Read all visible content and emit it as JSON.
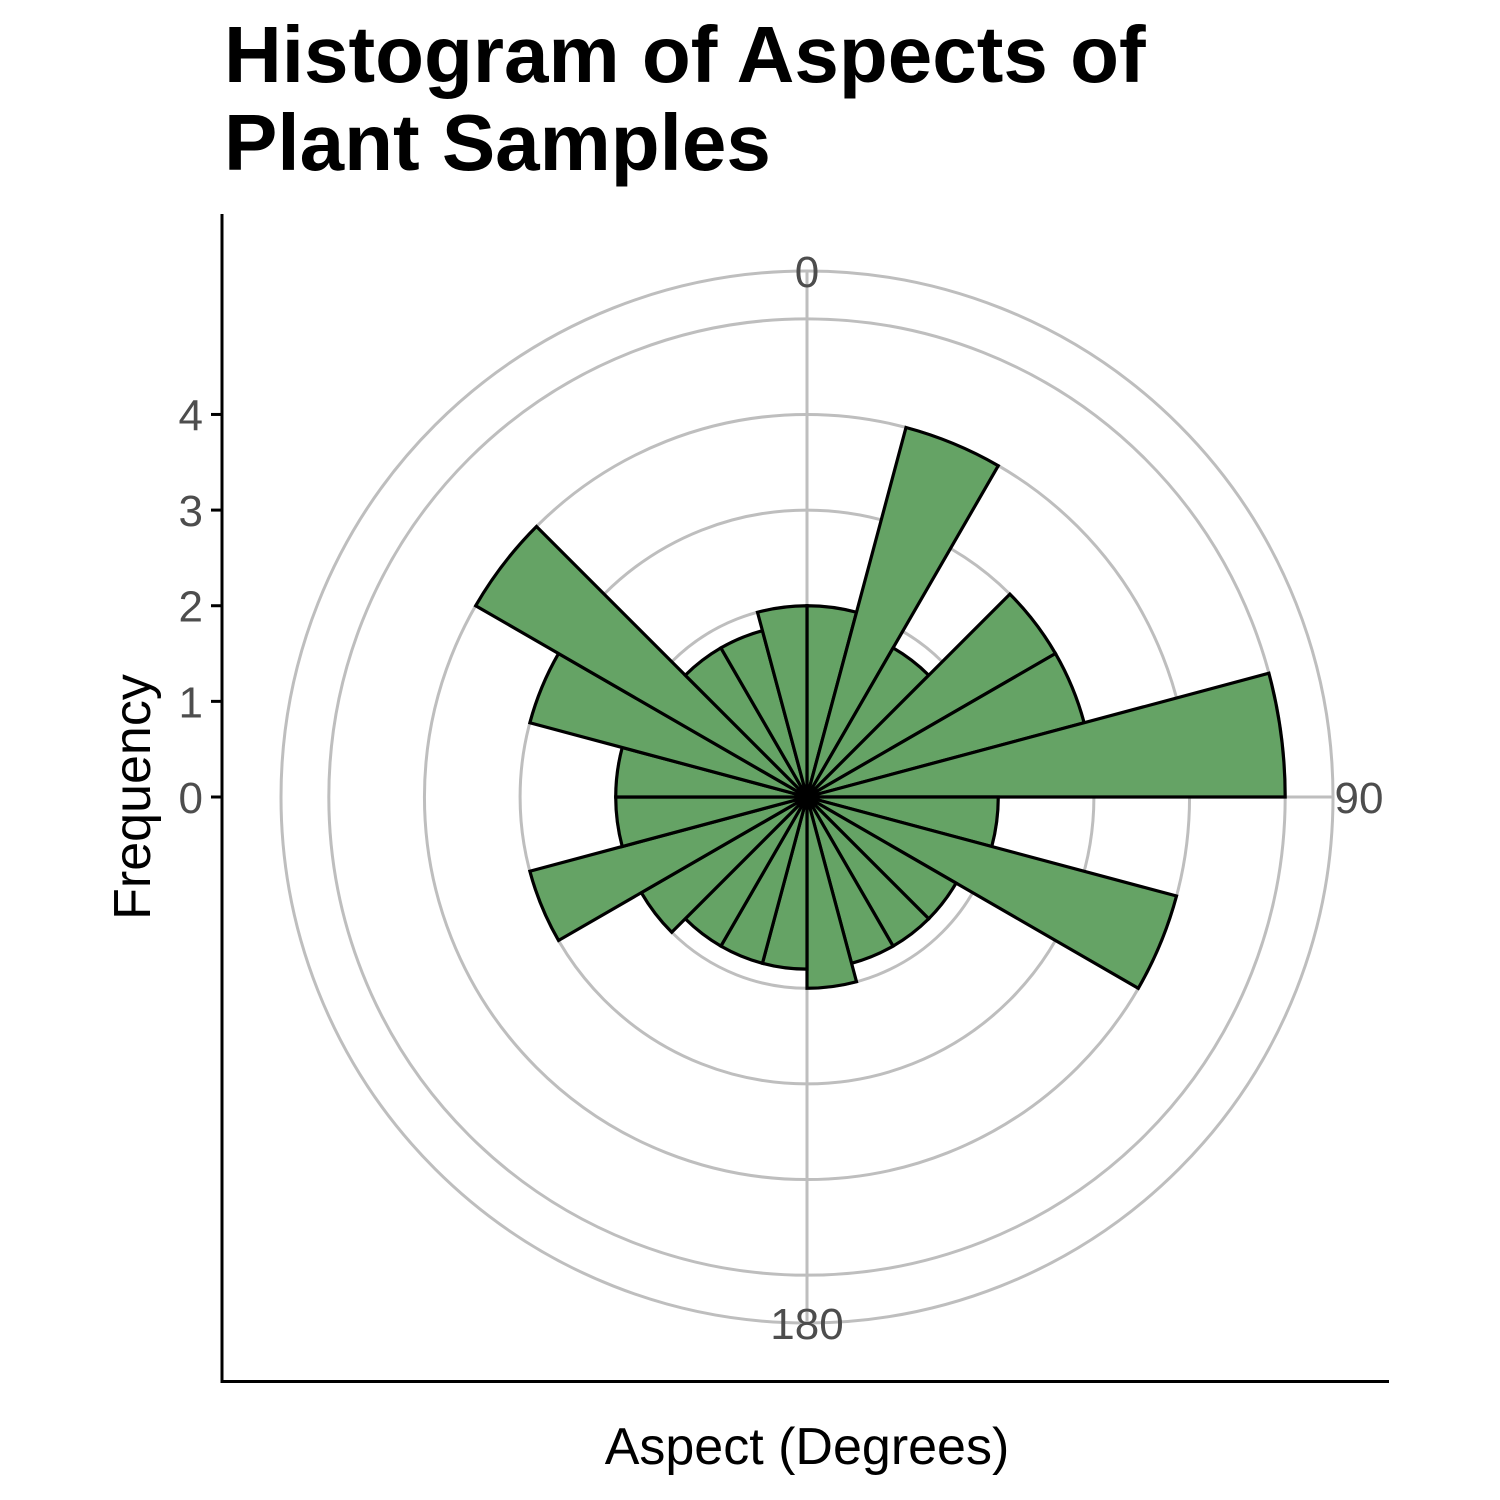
{
  "chart_data": {
    "type": "bar",
    "coord": "polar",
    "title_lines": [
      "Histogram of Aspects of",
      "Plant Samples"
    ],
    "xlabel": "Aspect (Degrees)",
    "ylabel": "Frequency",
    "y_ticks": [
      "0",
      "1",
      "2",
      "3",
      "4"
    ],
    "angle_ticks": [
      {
        "value": 0,
        "label": "0"
      },
      {
        "value": 90,
        "label": "90"
      },
      {
        "value": 180,
        "label": "180"
      }
    ],
    "ylim": [
      -1,
      4.5
    ],
    "bin_width_degrees": 15,
    "bins": [
      {
        "x": 0,
        "value": 1
      },
      {
        "x": 15,
        "value": 3
      },
      {
        "x": 30,
        "value": 0.8
      },
      {
        "x": 45,
        "value": 2
      },
      {
        "x": 60,
        "value": 2
      },
      {
        "x": 75,
        "value": 4
      },
      {
        "x": 90,
        "value": 1
      },
      {
        "x": 105,
        "value": 3
      },
      {
        "x": 120,
        "value": 0.8
      },
      {
        "x": 135,
        "value": 0.8
      },
      {
        "x": 150,
        "value": 0.8
      },
      {
        "x": 165,
        "value": 1
      },
      {
        "x": 180,
        "value": 0.8
      },
      {
        "x": 195,
        "value": 0.8
      },
      {
        "x": 210,
        "value": 0.8
      },
      {
        "x": 225,
        "value": 1
      },
      {
        "x": 240,
        "value": 2
      },
      {
        "x": 255,
        "value": 1
      },
      {
        "x": 270,
        "value": 1
      },
      {
        "x": 285,
        "value": 2
      },
      {
        "x": 300,
        "value": 3
      },
      {
        "x": 315,
        "value": 0.8
      },
      {
        "x": 330,
        "value": 0.8
      },
      {
        "x": 345,
        "value": 1
      }
    ],
    "grid": true,
    "legend": "none",
    "colors": {
      "bar_fill": "#65a365",
      "bar_stroke": "#000000",
      "grid": "#bebebe",
      "tick_text": "#4d4d4d",
      "axis": "#000000"
    }
  }
}
